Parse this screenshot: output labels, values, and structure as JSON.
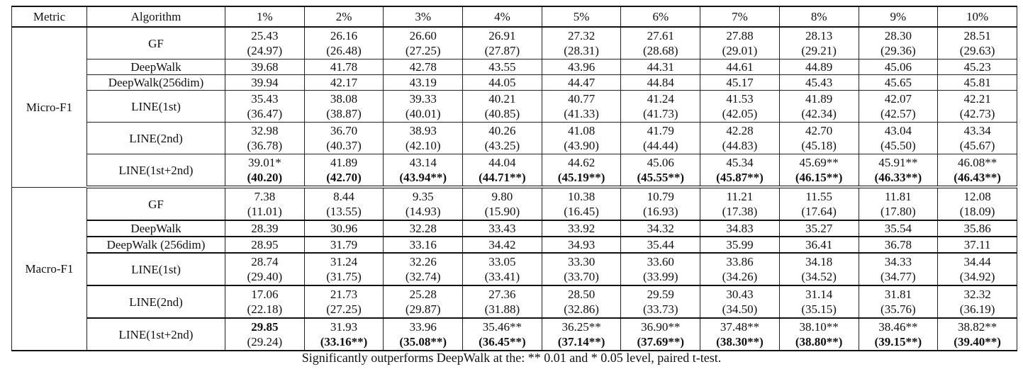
{
  "header": {
    "metric": "Metric",
    "algorithm": "Algorithm",
    "columns": [
      "1%",
      "2%",
      "3%",
      "4%",
      "5%",
      "6%",
      "7%",
      "8%",
      "9%",
      "10%"
    ]
  },
  "sections": [
    {
      "metric": "Micro-F1",
      "rows": [
        {
          "algorithm": "GF",
          "main": [
            "25.43",
            "26.16",
            "26.60",
            "26.91",
            "27.32",
            "27.61",
            "27.88",
            "28.13",
            "28.30",
            "28.51"
          ],
          "paren": [
            "(24.97)",
            "(26.48)",
            "(27.25)",
            "(27.87)",
            "(28.31)",
            "(28.68)",
            "(29.01)",
            "(29.21)",
            "(29.36)",
            "(29.63)"
          ],
          "bold_main": [],
          "bold_paren": []
        },
        {
          "algorithm": "DeepWalk",
          "main": [
            "39.68",
            "41.78",
            "42.78",
            "43.55",
            "43.96",
            "44.31",
            "44.61",
            "44.89",
            "45.06",
            "45.23"
          ],
          "paren": [],
          "bold_main": [],
          "bold_paren": []
        },
        {
          "algorithm": "DeepWalk(256dim)",
          "main": [
            "39.94",
            "42.17",
            "43.19",
            "44.05",
            "44.47",
            "44.84",
            "45.17",
            "45.43",
            "45.65",
            "45.81"
          ],
          "paren": [],
          "bold_main": [],
          "bold_paren": []
        },
        {
          "algorithm": "LINE(1st)",
          "main": [
            "35.43",
            "38.08",
            "39.33",
            "40.21",
            "40.77",
            "41.24",
            "41.53",
            "41.89",
            "42.07",
            "42.21"
          ],
          "paren": [
            "(36.47)",
            "(38.87)",
            "(40.01)",
            "(40.85)",
            "(41.33)",
            "(41.73)",
            "(42.05)",
            "(42.34)",
            "(42.57)",
            "(42.73)"
          ],
          "bold_main": [],
          "bold_paren": []
        },
        {
          "algorithm": "LINE(2nd)",
          "main": [
            "32.98",
            "36.70",
            "38.93",
            "40.26",
            "41.08",
            "41.79",
            "42.28",
            "42.70",
            "43.04",
            "43.34"
          ],
          "paren": [
            "(36.78)",
            "(40.37)",
            "(42.10)",
            "(43.25)",
            "(43.90)",
            "(44.44)",
            "(44.83)",
            "(45.18)",
            "(45.50)",
            "(45.67)"
          ],
          "bold_main": [],
          "bold_paren": []
        },
        {
          "algorithm": "LINE(1st+2nd)",
          "main": [
            "39.01*",
            "41.89",
            "43.14",
            "44.04",
            "44.62",
            "45.06",
            "45.34",
            "45.69**",
            "45.91**",
            "46.08**"
          ],
          "paren": [
            "(40.20)",
            "(42.70)",
            "(43.94**)",
            "(44.71**)",
            "(45.19**)",
            "(45.55**)",
            "(45.87**)",
            "(46.15**)",
            "(46.33**)",
            "(46.43**)"
          ],
          "bold_main": [],
          "bold_paren": [
            0,
            1,
            2,
            3,
            4,
            5,
            6,
            7,
            8,
            9
          ]
        }
      ]
    },
    {
      "metric": "Macro-F1",
      "rows": [
        {
          "algorithm": "GF",
          "main": [
            "7.38",
            "8.44",
            "9.35",
            "9.80",
            "10.38",
            "10.79",
            "11.21",
            "11.55",
            "11.81",
            "12.08"
          ],
          "paren": [
            "(11.01)",
            "(13.55)",
            "(14.93)",
            "(15.90)",
            "(16.45)",
            "(16.93)",
            "(17.38)",
            "(17.64)",
            "(17.80)",
            "(18.09)"
          ],
          "bold_main": [],
          "bold_paren": []
        },
        {
          "algorithm": "DeepWalk",
          "main": [
            "28.39",
            "30.96",
            "32.28",
            "33.43",
            "33.92",
            "34.32",
            "34.83",
            "35.27",
            "35.54",
            "35.86"
          ],
          "paren": [],
          "bold_main": [],
          "bold_paren": []
        },
        {
          "algorithm": "DeepWalk (256dim)",
          "main": [
            "28.95",
            "31.79",
            "33.16",
            "34.42",
            "34.93",
            "35.44",
            "35.99",
            "36.41",
            "36.78",
            "37.11"
          ],
          "paren": [],
          "bold_main": [],
          "bold_paren": []
        },
        {
          "algorithm": "LINE(1st)",
          "main": [
            "28.74",
            "31.24",
            "32.26",
            "33.05",
            "33.30",
            "33.60",
            "33.86",
            "34.18",
            "34.33",
            "34.44"
          ],
          "paren": [
            "(29.40)",
            "(31.75)",
            "(32.74)",
            "(33.41)",
            "(33.70)",
            "(33.99)",
            "(34.26)",
            "(34.52)",
            "(34.77)",
            "(34.92)"
          ],
          "bold_main": [],
          "bold_paren": []
        },
        {
          "algorithm": "LINE(2nd)",
          "main": [
            "17.06",
            "21.73",
            "25.28",
            "27.36",
            "28.50",
            "29.59",
            "30.43",
            "31.14",
            "31.81",
            "32.32"
          ],
          "paren": [
            "(22.18)",
            "(27.25)",
            "(29.87)",
            "(31.88)",
            "(32.86)",
            "(33.73)",
            "(34.50)",
            "(35.15)",
            "(35.76)",
            "(36.19)"
          ],
          "bold_main": [],
          "bold_paren": []
        },
        {
          "algorithm": "LINE(1st+2nd)",
          "main": [
            "29.85",
            "31.93",
            "33.96",
            "35.46**",
            "36.25**",
            "36.90**",
            "37.48**",
            "38.10**",
            "38.46**",
            "38.82**"
          ],
          "paren": [
            "(29.24)",
            "(33.16**)",
            "(35.08**)",
            "(36.45**)",
            "(37.14**)",
            "(37.69**)",
            "(38.30**)",
            "(38.80**)",
            "(39.15**)",
            "(39.40**)"
          ],
          "bold_main": [
            0
          ],
          "bold_paren": [
            1,
            2,
            3,
            4,
            5,
            6,
            7,
            8,
            9
          ]
        }
      ]
    }
  ],
  "caption": "Significantly outperforms DeepWalk at the: ** 0.01 and * 0.05 level, paired t-test."
}
